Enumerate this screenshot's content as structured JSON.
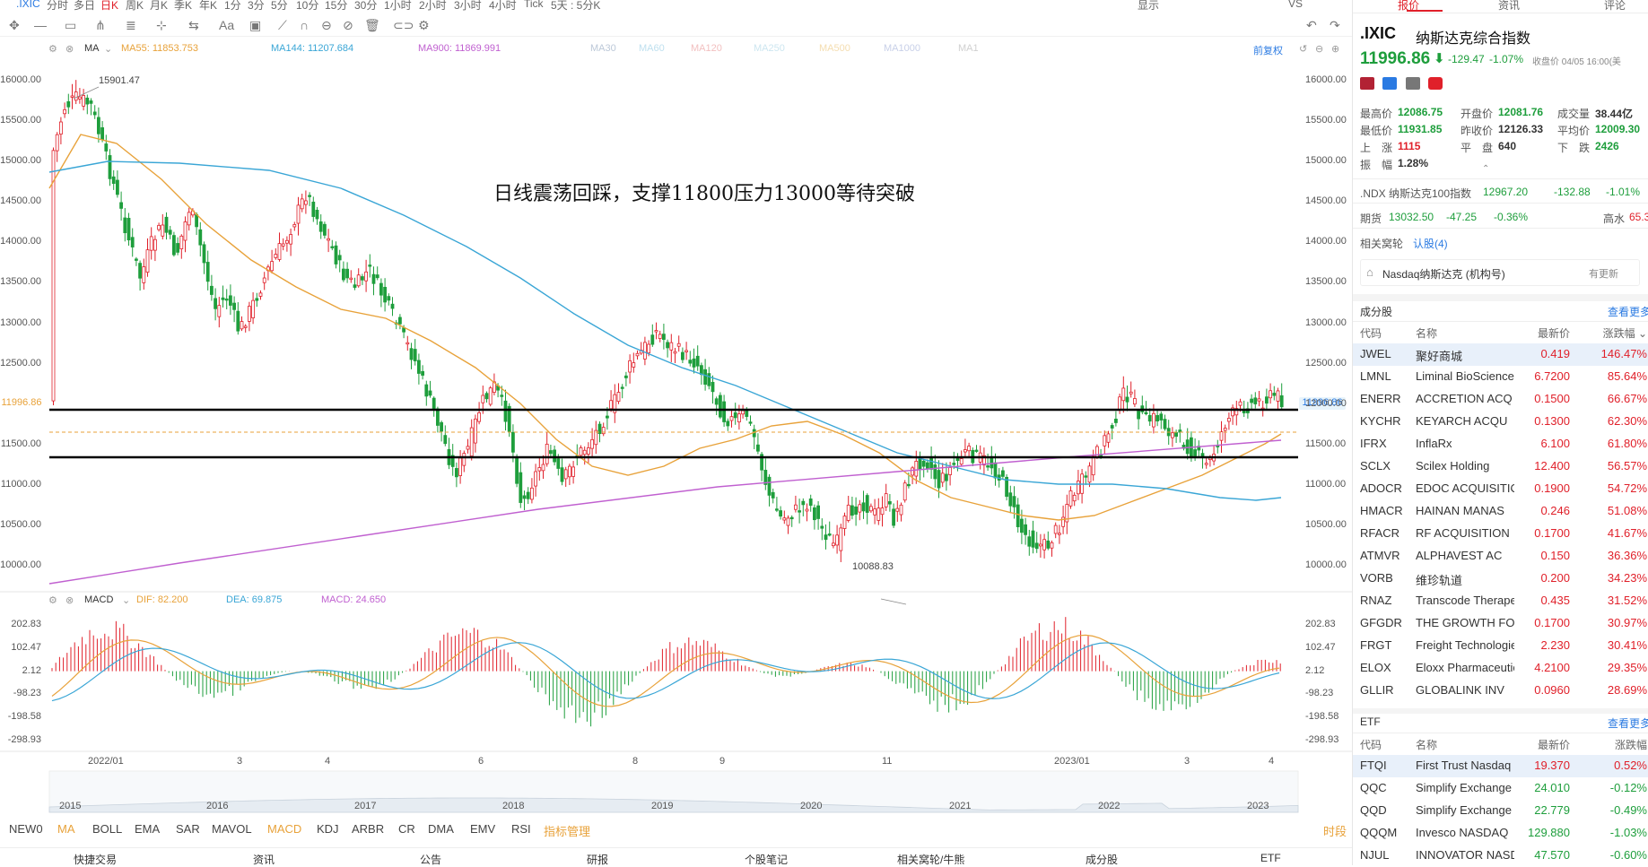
{
  "topbar": {
    "items": [
      ".IXIC",
      "分时",
      "多日",
      "日K",
      "周K",
      "月K",
      "季K",
      "年K",
      "1分",
      "3分",
      "5分",
      "10分",
      "15分",
      "30分",
      "1小时",
      "2小时",
      "3小时",
      "4小时",
      "Tick",
      "5天 : 5分K"
    ],
    "display_label": "显示",
    "vs_label": "VS"
  },
  "ma_legend": {
    "name": "MA",
    "ma55": "MA55: 11853.753",
    "ma144": "MA144: 11207.684",
    "ma900": "MA900: 11869.991",
    "inactive": [
      "MA30",
      "MA60",
      "MA120",
      "MA250",
      "MA500",
      "MA1000",
      "MA1"
    ],
    "fq": "前复权"
  },
  "macd_legend": {
    "name": "MACD",
    "dif": "DIF: 82.200",
    "dea": "DEA: 69.875",
    "macd": "MACD: 24.650"
  },
  "annotation": "日线震荡回踩，支撑11800压力13000等待突破",
  "price_axis": [
    "16000.00",
    "15500.00",
    "15000.00",
    "14500.00",
    "14000.00",
    "13500.00",
    "13000.00",
    "12500.00",
    "12000.00",
    "11500.00",
    "11000.00",
    "10500.00",
    "10000.00"
  ],
  "current_price_tag": "11996.86",
  "high_label": "15901.47",
  "low_label": "10088.83",
  "macd_axis": [
    "202.83",
    "102.47",
    "2.12",
    "-98.23",
    "-198.58",
    "-298.93"
  ],
  "x_axis": [
    "2022/01",
    "3",
    "4",
    "6",
    "8",
    "9",
    "11",
    "2023/01",
    "3",
    "4"
  ],
  "overview_years": [
    "2015",
    "2016",
    "2017",
    "2018",
    "2019",
    "2020",
    "2021",
    "2022",
    "2023"
  ],
  "indicators": [
    "NEW0",
    "MA",
    "BOLL",
    "EMA",
    "SAR",
    "MAVOL",
    "MACD",
    "KDJ",
    "ARBR",
    "CR",
    "DMA",
    "EMV",
    "RSI",
    "指标管理"
  ],
  "right_edge_label": "时段",
  "bottom_nav": [
    "快捷交易",
    "资讯",
    "公告",
    "研报",
    "个股笔记",
    "相关窝轮/牛熊",
    "成分股",
    "ETF"
  ],
  "panel": {
    "tabs": [
      "报价",
      "资讯",
      "评论"
    ],
    "symbol": ".IXIC",
    "name": "纳斯达克综合指数",
    "price": "11996.86",
    "change": "-129.47",
    "change_pct": "-1.07%",
    "close_time": "收盘价 04/05 16:00(美",
    "stats": [
      {
        "label": "最高价",
        "value": "12086.75",
        "cls": "green"
      },
      {
        "label": "开盘价",
        "value": "12081.76",
        "cls": "green"
      },
      {
        "label": "成交量",
        "value": "38.44亿",
        "cls": ""
      },
      {
        "label": "最低价",
        "value": "11931.85",
        "cls": "green"
      },
      {
        "label": "昨收价",
        "value": "12126.33",
        "cls": ""
      },
      {
        "label": "平均价",
        "value": "12009.30",
        "cls": "green"
      },
      {
        "label": "上　涨",
        "value": "1115",
        "cls": "red"
      },
      {
        "label": "平　盘",
        "value": "640",
        "cls": ""
      },
      {
        "label": "下　跌",
        "value": "2426",
        "cls": "green"
      },
      {
        "label": "振　幅",
        "value": "1.28%",
        "cls": ""
      }
    ],
    "ndx": {
      "label": ".NDX 纳斯达克100指数",
      "price": "12967.20",
      "change": "-132.88",
      "pct": "-1.01%"
    },
    "futures": {
      "label": "期货",
      "price": "13032.50",
      "change": "-47.25",
      "pct": "-0.36%",
      "extra_label": "高水",
      "extra_value": "65.3"
    },
    "warrants": {
      "label": "相关窝轮",
      "value": "认股(4)"
    },
    "holding": {
      "label": "Nasdaq纳斯达克 (机构号)",
      "update": "有更新"
    },
    "components_title": "成分股",
    "more": "查看更多",
    "headers": [
      "代码",
      "名称",
      "最新价",
      "涨跌幅"
    ],
    "components": [
      {
        "code": "JWEL",
        "name": "聚好商城",
        "price": "0.419",
        "pct": "146.47%"
      },
      {
        "code": "LMNL",
        "name": "Liminal BioSciences",
        "price": "6.7200",
        "pct": "85.64%"
      },
      {
        "code": "ENERR",
        "name": "ACCRETION ACQ",
        "price": "0.1500",
        "pct": "66.67%"
      },
      {
        "code": "KYCHR",
        "name": "KEYARCH ACQU",
        "price": "0.1300",
        "pct": "62.30%"
      },
      {
        "code": "IFRX",
        "name": "InflaRx",
        "price": "6.100",
        "pct": "61.80%"
      },
      {
        "code": "SCLX",
        "name": "Scilex Holding",
        "price": "12.400",
        "pct": "56.57%"
      },
      {
        "code": "ADOCR",
        "name": "EDOC ACQUISITION",
        "price": "0.1900",
        "pct": "54.72%"
      },
      {
        "code": "HMACR",
        "name": "HAINAN MANAS",
        "price": "0.246",
        "pct": "51.08%"
      },
      {
        "code": "RFACR",
        "name": "RF ACQUISITION",
        "price": "0.1700",
        "pct": "41.67%"
      },
      {
        "code": "ATMVR",
        "name": "ALPHAVEST AC",
        "price": "0.150",
        "pct": "36.36%"
      },
      {
        "code": "VORB",
        "name": "维珍轨道",
        "price": "0.200",
        "pct": "34.23%"
      },
      {
        "code": "RNAZ",
        "name": "Transcode Therapeutics",
        "price": "0.435",
        "pct": "31.52%"
      },
      {
        "code": "GFGDR",
        "name": "THE GROWTH FOR GOOD",
        "price": "0.1700",
        "pct": "30.97%"
      },
      {
        "code": "FRGT",
        "name": "Freight Technologies",
        "price": "2.230",
        "pct": "30.41%"
      },
      {
        "code": "ELOX",
        "name": "Eloxx Pharmaceuticals",
        "price": "4.2100",
        "pct": "29.35%"
      },
      {
        "code": "GLLIR",
        "name": "GLOBALINK INV",
        "price": "0.0960",
        "pct": "28.69%"
      }
    ],
    "etf_title": "ETF",
    "etf": [
      {
        "code": "FTQI",
        "name": "First Trust Nasdaq",
        "price": "19.370",
        "pct": "0.52%",
        "up": true
      },
      {
        "code": "QQC",
        "name": "Simplify Exchange",
        "price": "24.010",
        "pct": "-0.12%",
        "up": false
      },
      {
        "code": "QQD",
        "name": "Simplify Exchange",
        "price": "22.779",
        "pct": "-0.49%",
        "up": false
      },
      {
        "code": "QQQM",
        "name": "Invesco NASDAQ",
        "price": "129.880",
        "pct": "-1.03%",
        "up": false
      },
      {
        "code": "NJUL",
        "name": "INNOVATOR NASDAQ",
        "price": "47.570",
        "pct": "-0.60%",
        "up": false
      }
    ]
  },
  "colors": {
    "up": "#e0202a",
    "down": "#1e9e3c",
    "ma55": "#e8a23a",
    "ma144": "#3aa6d6",
    "ma900": "#c060d0"
  }
}
